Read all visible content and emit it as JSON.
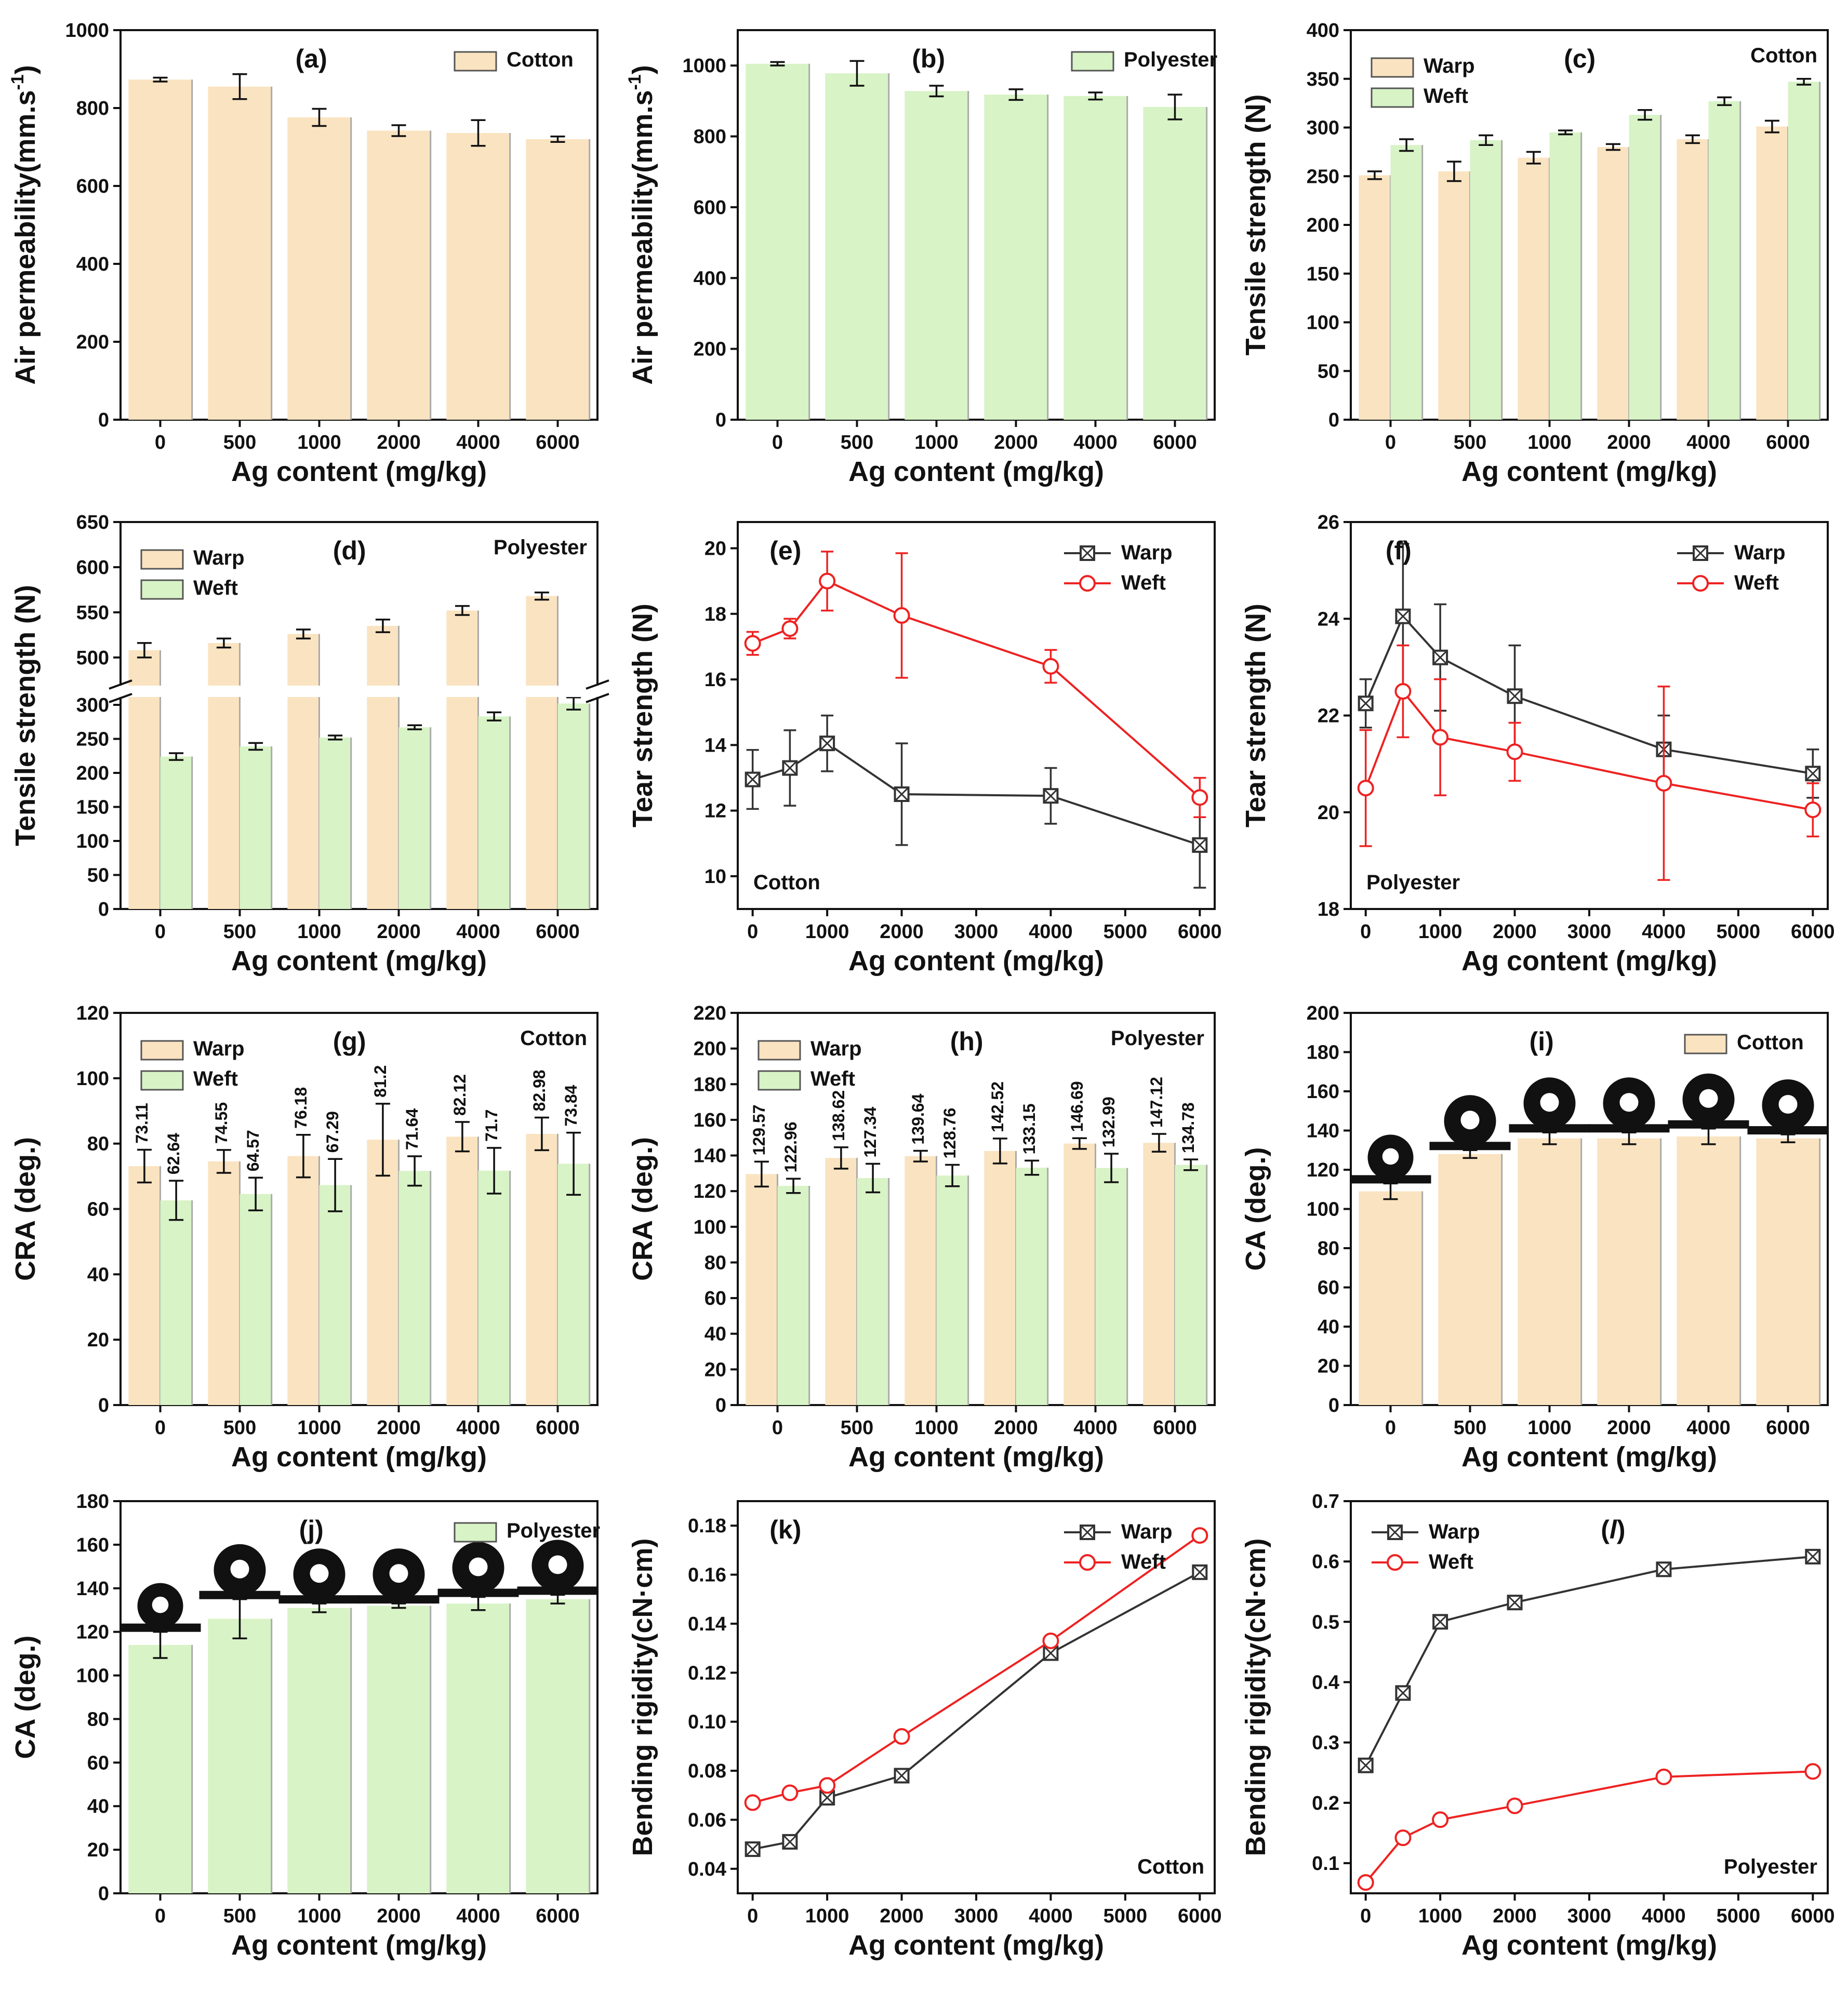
{
  "figure": {
    "xlabel_common": "Ag content (mg/kg)",
    "colors": {
      "cotton": "#fae3c0",
      "polyester": "#d8f3c6",
      "warp_line": "#333333",
      "weft_line": "#ee2222",
      "bar_edge": "#555555"
    }
  },
  "chart_data": [
    {
      "id": "a",
      "type": "bar",
      "panel_label": "(a)",
      "title": "",
      "xlabel": "Ag content (mg/kg)",
      "ylabel": "Air permeability(mm.s-1)",
      "categories": [
        "0",
        "500",
        "1000",
        "2000",
        "4000",
        "6000"
      ],
      "ylim": [
        0,
        1000
      ],
      "yticks": [
        0,
        200,
        400,
        600,
        800,
        1000
      ],
      "series": [
        {
          "name": "Cotton",
          "color": "#fae3c0",
          "values": [
            873,
            855,
            776,
            742,
            736,
            720
          ],
          "errors": [
            5,
            32,
            22,
            14,
            33,
            7
          ]
        }
      ],
      "annotations": []
    },
    {
      "id": "b",
      "type": "bar",
      "panel_label": "(b)",
      "xlabel": "Ag content (mg/kg)",
      "ylabel": "Air permeability(mm.s-1)",
      "categories": [
        "0",
        "500",
        "1000",
        "2000",
        "4000",
        "6000"
      ],
      "ylim": [
        0,
        1100
      ],
      "yticks": [
        0,
        200,
        400,
        600,
        800,
        1000
      ],
      "series": [
        {
          "name": "Polyester",
          "color": "#d8f3c6",
          "values": [
            1005,
            978,
            928,
            918,
            914,
            883
          ],
          "errors": [
            5,
            35,
            15,
            15,
            10,
            35
          ]
        }
      ],
      "annotations": []
    },
    {
      "id": "c",
      "type": "bar",
      "panel_label": "(c)",
      "xlabel": "Ag content (mg/kg)",
      "ylabel": "Tensile strength (N)",
      "categories": [
        "0",
        "500",
        "1000",
        "2000",
        "4000",
        "6000"
      ],
      "ylim": [
        0,
        400
      ],
      "yticks": [
        0,
        50,
        100,
        150,
        200,
        250,
        300,
        350,
        400
      ],
      "series": [
        {
          "name": "Warp",
          "color": "#fae3c0",
          "values": [
            251,
            255,
            269,
            280,
            288,
            301
          ],
          "errors": [
            4,
            10,
            6,
            3,
            4,
            6
          ]
        },
        {
          "name": "Weft",
          "color": "#d8f3c6",
          "values": [
            282,
            287,
            295,
            313,
            327,
            347
          ],
          "errors": [
            6,
            5,
            2,
            5,
            4,
            3
          ]
        }
      ],
      "annotations": [
        "Cotton"
      ]
    },
    {
      "id": "d",
      "type": "bar",
      "panel_label": "(d)",
      "xlabel": "Ag content (mg/kg)",
      "ylabel": "Tensile strength (N)",
      "categories": [
        "0",
        "500",
        "1000",
        "2000",
        "4000",
        "6000"
      ],
      "axis_break": [
        310,
        470
      ],
      "lower_range": [
        0,
        310
      ],
      "upper_range": [
        470,
        650
      ],
      "yticks_lower": [
        0,
        50,
        100,
        150,
        200,
        250,
        300
      ],
      "yticks_upper": [
        500,
        550,
        600,
        650
      ],
      "series": [
        {
          "name": "Warp",
          "color": "#fae3c0",
          "values": [
            508,
            516,
            526,
            535,
            552,
            568
          ],
          "errors": [
            8,
            5,
            5,
            7,
            5,
            4
          ]
        },
        {
          "name": "Weft",
          "color": "#d8f3c6",
          "values": [
            224,
            239,
            252,
            267,
            283,
            302
          ],
          "errors": [
            5,
            5,
            3,
            3,
            6,
            9
          ]
        }
      ],
      "annotations": [
        "Polyester"
      ]
    },
    {
      "id": "e",
      "type": "line",
      "panel_label": "(e)",
      "xlabel": "Ag content (mg/kg)",
      "ylabel": "Tear strength (N)",
      "x": [
        0,
        500,
        1000,
        2000,
        4000,
        6000
      ],
      "xlim": [
        -200,
        6200
      ],
      "xticks": [
        0,
        1000,
        2000,
        3000,
        4000,
        5000,
        6000
      ],
      "ylim": [
        9,
        20.8
      ],
      "yticks": [
        10,
        12,
        14,
        16,
        18,
        20
      ],
      "series": [
        {
          "name": "Warp",
          "color": "#333333",
          "marker": "boxx",
          "values": [
            12.95,
            13.3,
            14.05,
            12.5,
            12.45,
            10.95
          ],
          "errors": [
            0.9,
            1.15,
            0.85,
            1.55,
            0.85,
            1.3
          ]
        },
        {
          "name": "Weft",
          "color": "#ee2222",
          "marker": "circle",
          "values": [
            17.1,
            17.55,
            19.0,
            17.95,
            16.4,
            12.4
          ],
          "errors": [
            0.35,
            0.3,
            0.9,
            1.9,
            0.5,
            0.6
          ]
        }
      ],
      "annotations": [
        "Cotton"
      ]
    },
    {
      "id": "f",
      "type": "line",
      "panel_label": "(f)",
      "xlabel": "Ag content (mg/kg)",
      "ylabel": "Tear strength (N)",
      "x": [
        0,
        500,
        1000,
        2000,
        4000,
        6000
      ],
      "xlim": [
        -200,
        6200
      ],
      "xticks": [
        0,
        1000,
        2000,
        3000,
        4000,
        5000,
        6000
      ],
      "ylim": [
        18,
        26
      ],
      "yticks": [
        18,
        20,
        22,
        24,
        26
      ],
      "series": [
        {
          "name": "Warp",
          "color": "#333333",
          "marker": "boxx",
          "values": [
            22.25,
            24.05,
            23.2,
            22.4,
            21.3,
            20.8
          ],
          "errors": [
            0.5,
            1.5,
            1.1,
            1.05,
            0.7,
            0.5
          ]
        },
        {
          "name": "Weft",
          "color": "#ee2222",
          "marker": "circle",
          "values": [
            20.5,
            22.5,
            21.55,
            21.25,
            20.6,
            20.05
          ],
          "errors": [
            1.2,
            0.95,
            1.2,
            0.6,
            2.0,
            0.55
          ]
        }
      ],
      "annotations": [
        "Polyester"
      ]
    },
    {
      "id": "g",
      "type": "bar",
      "panel_label": "(g)",
      "xlabel": "Ag content (mg/kg)",
      "ylabel": "CRA (deg.)",
      "categories": [
        "0",
        "500",
        "1000",
        "2000",
        "4000",
        "6000"
      ],
      "ylim": [
        0,
        120
      ],
      "yticks": [
        0,
        20,
        40,
        60,
        80,
        100,
        120
      ],
      "series": [
        {
          "name": "Warp",
          "color": "#fae3c0",
          "values": [
            73.11,
            74.55,
            76.18,
            81.2,
            82.12,
            82.98
          ],
          "errors": [
            5,
            3.5,
            6.5,
            11,
            4.5,
            5
          ],
          "labels": [
            "73.11",
            "74.55",
            "76.18",
            "81.2",
            "82.12",
            "82.98"
          ]
        },
        {
          "name": "Weft",
          "color": "#d8f3c6",
          "values": [
            62.64,
            64.57,
            67.29,
            71.64,
            71.7,
            73.84
          ],
          "errors": [
            6,
            5,
            8,
            4.5,
            7,
            9.5
          ],
          "labels": [
            "62.64",
            "64.57",
            "67.29",
            "71.64",
            "71.7",
            "73.84"
          ]
        }
      ],
      "annotations": [
        "Cotton"
      ]
    },
    {
      "id": "h",
      "type": "bar",
      "panel_label": "(h)",
      "xlabel": "Ag content (mg/kg)",
      "ylabel": "CRA (deg.)",
      "categories": [
        "0",
        "500",
        "1000",
        "2000",
        "4000",
        "6000"
      ],
      "ylim": [
        0,
        220
      ],
      "yticks": [
        0,
        20,
        40,
        60,
        80,
        100,
        120,
        140,
        160,
        180,
        200,
        220
      ],
      "series": [
        {
          "name": "Warp",
          "color": "#fae3c0",
          "values": [
            129.57,
            138.62,
            139.64,
            142.52,
            146.69,
            147.12
          ],
          "errors": [
            7,
            6,
            3,
            7,
            3,
            5
          ],
          "labels": [
            "129.57",
            "138.62",
            "139.64",
            "142.52",
            "146.69",
            "147.12"
          ]
        },
        {
          "name": "Weft",
          "color": "#d8f3c6",
          "values": [
            122.96,
            127.34,
            128.76,
            133.15,
            132.99,
            134.78
          ],
          "errors": [
            4,
            8,
            6,
            4,
            8,
            3
          ],
          "labels": [
            "122.96",
            "127.34",
            "128.76",
            "133.15",
            "132.99",
            "134.78"
          ]
        }
      ],
      "annotations": [
        "Polyester"
      ]
    },
    {
      "id": "i",
      "type": "bar",
      "panel_label": "(i)",
      "xlabel": "Ag content (mg/kg)",
      "ylabel": "CA (deg.)",
      "categories": [
        "0",
        "500",
        "1000",
        "2000",
        "4000",
        "6000"
      ],
      "ylim": [
        0,
        200
      ],
      "yticks": [
        0,
        20,
        40,
        60,
        80,
        100,
        120,
        140,
        160,
        180,
        200
      ],
      "series": [
        {
          "name": "Cotton",
          "color": "#fae3c0",
          "values": [
            109,
            128,
            136,
            136,
            137,
            136
          ],
          "errors": [
            4,
            2,
            3,
            3,
            4,
            2
          ]
        }
      ],
      "droplets": true,
      "annotations": []
    },
    {
      "id": "j",
      "type": "bar",
      "panel_label": "(j)",
      "xlabel": "Ag content (mg/kg)",
      "ylabel": "CA (deg.)",
      "categories": [
        "0",
        "500",
        "1000",
        "2000",
        "4000",
        "6000"
      ],
      "ylim": [
        0,
        180
      ],
      "yticks": [
        0,
        20,
        40,
        60,
        80,
        100,
        120,
        140,
        160,
        180
      ],
      "series": [
        {
          "name": "Polyester",
          "color": "#d8f3c6",
          "values": [
            114,
            126,
            131,
            132,
            133,
            135
          ],
          "errors": [
            6,
            9,
            2,
            1,
            3,
            2
          ]
        }
      ],
      "droplets": true,
      "annotations": []
    },
    {
      "id": "k",
      "type": "line",
      "panel_label": "(k)",
      "xlabel": "Ag content (mg/kg)",
      "ylabel": "Bending rigidity(cN·cm)",
      "x": [
        0,
        500,
        1000,
        2000,
        4000,
        6000
      ],
      "xlim": [
        -200,
        6200
      ],
      "xticks": [
        0,
        1000,
        2000,
        3000,
        4000,
        5000,
        6000
      ],
      "ylim": [
        0.03,
        0.19
      ],
      "yticks": [
        0.04,
        0.06,
        0.08,
        0.1,
        0.12,
        0.14,
        0.16,
        0.18
      ],
      "series": [
        {
          "name": "Warp",
          "color": "#333333",
          "marker": "boxx",
          "values": [
            0.048,
            0.051,
            0.069,
            0.078,
            0.128,
            0.161
          ]
        },
        {
          "name": "Weft",
          "color": "#ee2222",
          "marker": "circle",
          "values": [
            0.067,
            0.071,
            0.074,
            0.094,
            0.133,
            0.176
          ]
        }
      ],
      "annotations": [
        "Cotton"
      ]
    },
    {
      "id": "l",
      "type": "line",
      "panel_label": "(l)",
      "xlabel": "Ag content (mg/kg)",
      "ylabel": "Bending rigidity(cN·cm)",
      "x": [
        0,
        500,
        1000,
        2000,
        4000,
        6000
      ],
      "xlim": [
        -200,
        6200
      ],
      "xticks": [
        0,
        1000,
        2000,
        3000,
        4000,
        5000,
        6000
      ],
      "ylim": [
        0.05,
        0.7
      ],
      "yticks": [
        0.1,
        0.2,
        0.3,
        0.4,
        0.5,
        0.6,
        0.7
      ],
      "series": [
        {
          "name": "Warp",
          "color": "#333333",
          "marker": "boxx",
          "values": [
            0.262,
            0.382,
            0.5,
            0.532,
            0.587,
            0.608
          ]
        },
        {
          "name": "Weft",
          "color": "#ee2222",
          "marker": "circle",
          "values": [
            0.068,
            0.142,
            0.172,
            0.195,
            0.243,
            0.252
          ]
        }
      ],
      "annotations": [
        "Polyester"
      ]
    }
  ]
}
